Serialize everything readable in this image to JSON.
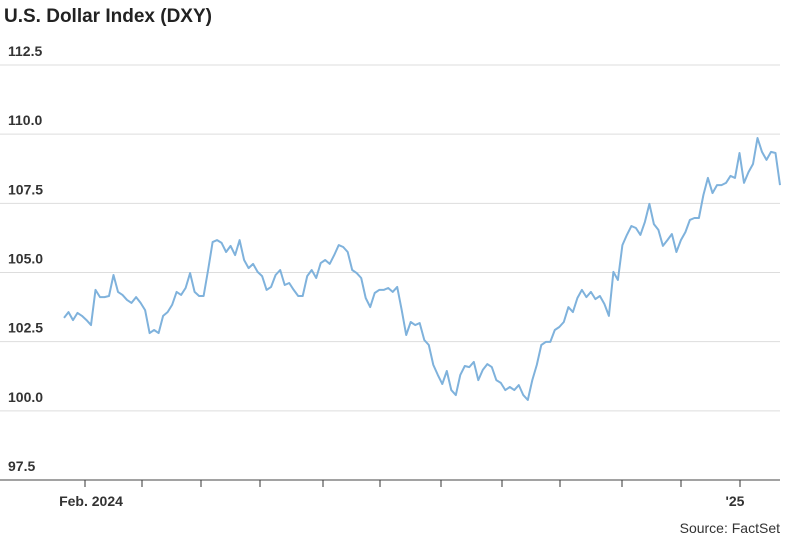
{
  "chart_data": {
    "type": "line",
    "title": "U.S. Dollar Index (DXY)",
    "source": "Source: FactSet",
    "categories": [
      null,
      null,
      null,
      null,
      null,
      null,
      "Feb. 2024",
      null,
      null,
      null,
      null,
      null,
      null,
      null,
      null,
      null,
      null,
      null,
      null,
      null,
      null,
      null,
      null,
      null,
      null,
      null,
      null,
      null,
      null,
      null,
      null,
      null,
      null,
      null,
      null,
      null,
      null,
      null,
      null,
      null,
      null,
      null,
      null,
      null,
      null,
      null,
      null,
      null,
      null,
      null,
      null,
      null,
      null,
      null,
      null,
      null,
      null,
      null,
      null,
      null,
      null,
      null,
      null,
      null,
      null,
      null,
      null,
      null,
      null,
      null,
      null,
      null,
      null,
      null,
      null,
      null,
      null,
      null,
      null,
      null,
      null,
      null,
      null,
      null,
      null,
      null,
      null,
      null,
      null,
      null,
      null,
      null,
      null,
      null,
      null,
      null,
      null,
      null,
      null,
      null,
      null,
      null,
      null,
      null,
      null,
      null,
      null,
      null,
      null,
      null,
      null,
      null,
      null,
      null,
      null,
      null,
      null,
      null,
      null,
      null,
      null,
      null,
      null,
      null,
      null,
      null,
      null,
      null,
      null,
      null,
      null,
      null,
      null,
      null,
      null,
      null,
      null,
      null,
      null,
      null,
      null,
      null,
      null,
      null,
      null,
      null,
      null,
      null,
      null,
      "'25",
      null,
      null,
      null,
      null,
      null,
      null,
      null,
      null,
      null,
      null
    ],
    "series": [
      {
        "name": "DXY",
        "color": "#7fb2dc",
        "values": [
          103.36,
          103.57,
          103.28,
          103.54,
          103.43,
          103.28,
          103.1,
          104.37,
          104.11,
          104.11,
          104.15,
          104.91,
          104.3,
          104.19,
          104.01,
          103.9,
          104.11,
          103.9,
          103.64,
          102.81,
          102.92,
          102.81,
          103.43,
          103.57,
          103.83,
          104.3,
          104.19,
          104.44,
          104.98,
          104.3,
          104.15,
          104.15,
          105.09,
          106.1,
          106.17,
          106.07,
          105.74,
          105.96,
          105.63,
          106.17,
          105.45,
          105.16,
          105.31,
          105.02,
          104.87,
          104.37,
          104.48,
          104.91,
          105.09,
          104.55,
          104.62,
          104.37,
          104.15,
          104.15,
          104.87,
          105.09,
          104.8,
          105.34,
          105.45,
          105.31,
          105.63,
          105.99,
          105.92,
          105.74,
          105.09,
          104.98,
          104.8,
          104.08,
          103.75,
          104.26,
          104.37,
          104.37,
          104.44,
          104.3,
          104.48,
          103.64,
          102.74,
          103.21,
          103.1,
          103.17,
          102.56,
          102.38,
          101.66,
          101.3,
          100.97,
          101.44,
          100.75,
          100.57,
          101.3,
          101.62,
          101.58,
          101.77,
          101.11,
          101.48,
          101.69,
          101.58,
          101.11,
          101.01,
          100.75,
          100.86,
          100.75,
          100.93,
          100.57,
          100.39,
          101.11,
          101.66,
          102.38,
          102.49,
          102.49,
          102.92,
          103.03,
          103.21,
          103.75,
          103.57,
          104.08,
          104.37,
          104.11,
          104.3,
          104.04,
          104.15,
          103.86,
          103.43,
          105.02,
          104.73,
          105.99,
          106.36,
          106.68,
          106.61,
          106.36,
          106.83,
          107.48,
          106.75,
          106.54,
          105.96,
          106.17,
          106.39,
          105.74,
          106.17,
          106.46,
          106.9,
          106.97,
          106.97,
          107.8,
          108.42,
          107.87,
          108.16,
          108.16,
          108.24,
          108.49,
          108.42,
          109.32,
          108.24,
          108.63,
          108.92,
          109.86,
          109.36,
          109.07,
          109.36,
          109.32,
          108.16
        ]
      }
    ],
    "ylim": [
      97.5,
      112.5
    ],
    "yticks": [
      97.5,
      {
        "value": 100,
        "label": "100.0"
      },
      102.5,
      {
        "value": 105,
        "label": "105.0"
      },
      107.5,
      {
        "value": 110,
        "label": "110.0"
      },
      112.5
    ],
    "grid": true
  }
}
